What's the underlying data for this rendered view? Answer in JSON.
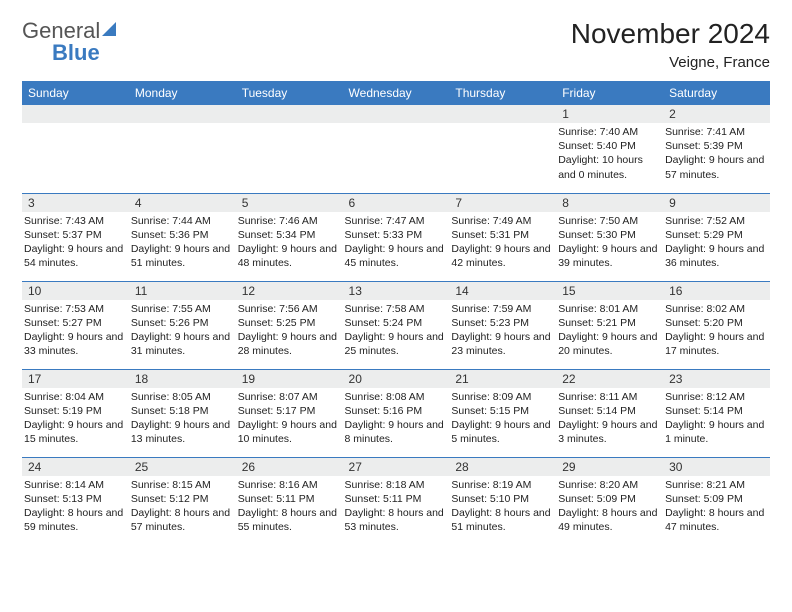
{
  "brand": {
    "word1": "General",
    "word2": "Blue"
  },
  "title": "November 2024",
  "location": "Veigne, France",
  "colors": {
    "header_bg": "#3a7ac0",
    "header_text": "#ffffff",
    "daynum_bg": "#eceded",
    "border": "#3a7ac0",
    "body_bg": "#ffffff",
    "text": "#222222"
  },
  "day_headers": [
    "Sunday",
    "Monday",
    "Tuesday",
    "Wednesday",
    "Thursday",
    "Friday",
    "Saturday"
  ],
  "weeks": [
    [
      {
        "empty": true
      },
      {
        "empty": true
      },
      {
        "empty": true
      },
      {
        "empty": true
      },
      {
        "empty": true
      },
      {
        "day": "1",
        "sunrise": "Sunrise: 7:40 AM",
        "sunset": "Sunset: 5:40 PM",
        "daylight": "Daylight: 10 hours and 0 minutes."
      },
      {
        "day": "2",
        "sunrise": "Sunrise: 7:41 AM",
        "sunset": "Sunset: 5:39 PM",
        "daylight": "Daylight: 9 hours and 57 minutes."
      }
    ],
    [
      {
        "day": "3",
        "sunrise": "Sunrise: 7:43 AM",
        "sunset": "Sunset: 5:37 PM",
        "daylight": "Daylight: 9 hours and 54 minutes."
      },
      {
        "day": "4",
        "sunrise": "Sunrise: 7:44 AM",
        "sunset": "Sunset: 5:36 PM",
        "daylight": "Daylight: 9 hours and 51 minutes."
      },
      {
        "day": "5",
        "sunrise": "Sunrise: 7:46 AM",
        "sunset": "Sunset: 5:34 PM",
        "daylight": "Daylight: 9 hours and 48 minutes."
      },
      {
        "day": "6",
        "sunrise": "Sunrise: 7:47 AM",
        "sunset": "Sunset: 5:33 PM",
        "daylight": "Daylight: 9 hours and 45 minutes."
      },
      {
        "day": "7",
        "sunrise": "Sunrise: 7:49 AM",
        "sunset": "Sunset: 5:31 PM",
        "daylight": "Daylight: 9 hours and 42 minutes."
      },
      {
        "day": "8",
        "sunrise": "Sunrise: 7:50 AM",
        "sunset": "Sunset: 5:30 PM",
        "daylight": "Daylight: 9 hours and 39 minutes."
      },
      {
        "day": "9",
        "sunrise": "Sunrise: 7:52 AM",
        "sunset": "Sunset: 5:29 PM",
        "daylight": "Daylight: 9 hours and 36 minutes."
      }
    ],
    [
      {
        "day": "10",
        "sunrise": "Sunrise: 7:53 AM",
        "sunset": "Sunset: 5:27 PM",
        "daylight": "Daylight: 9 hours and 33 minutes."
      },
      {
        "day": "11",
        "sunrise": "Sunrise: 7:55 AM",
        "sunset": "Sunset: 5:26 PM",
        "daylight": "Daylight: 9 hours and 31 minutes."
      },
      {
        "day": "12",
        "sunrise": "Sunrise: 7:56 AM",
        "sunset": "Sunset: 5:25 PM",
        "daylight": "Daylight: 9 hours and 28 minutes."
      },
      {
        "day": "13",
        "sunrise": "Sunrise: 7:58 AM",
        "sunset": "Sunset: 5:24 PM",
        "daylight": "Daylight: 9 hours and 25 minutes."
      },
      {
        "day": "14",
        "sunrise": "Sunrise: 7:59 AM",
        "sunset": "Sunset: 5:23 PM",
        "daylight": "Daylight: 9 hours and 23 minutes."
      },
      {
        "day": "15",
        "sunrise": "Sunrise: 8:01 AM",
        "sunset": "Sunset: 5:21 PM",
        "daylight": "Daylight: 9 hours and 20 minutes."
      },
      {
        "day": "16",
        "sunrise": "Sunrise: 8:02 AM",
        "sunset": "Sunset: 5:20 PM",
        "daylight": "Daylight: 9 hours and 17 minutes."
      }
    ],
    [
      {
        "day": "17",
        "sunrise": "Sunrise: 8:04 AM",
        "sunset": "Sunset: 5:19 PM",
        "daylight": "Daylight: 9 hours and 15 minutes."
      },
      {
        "day": "18",
        "sunrise": "Sunrise: 8:05 AM",
        "sunset": "Sunset: 5:18 PM",
        "daylight": "Daylight: 9 hours and 13 minutes."
      },
      {
        "day": "19",
        "sunrise": "Sunrise: 8:07 AM",
        "sunset": "Sunset: 5:17 PM",
        "daylight": "Daylight: 9 hours and 10 minutes."
      },
      {
        "day": "20",
        "sunrise": "Sunrise: 8:08 AM",
        "sunset": "Sunset: 5:16 PM",
        "daylight": "Daylight: 9 hours and 8 minutes."
      },
      {
        "day": "21",
        "sunrise": "Sunrise: 8:09 AM",
        "sunset": "Sunset: 5:15 PM",
        "daylight": "Daylight: 9 hours and 5 minutes."
      },
      {
        "day": "22",
        "sunrise": "Sunrise: 8:11 AM",
        "sunset": "Sunset: 5:14 PM",
        "daylight": "Daylight: 9 hours and 3 minutes."
      },
      {
        "day": "23",
        "sunrise": "Sunrise: 8:12 AM",
        "sunset": "Sunset: 5:14 PM",
        "daylight": "Daylight: 9 hours and 1 minute."
      }
    ],
    [
      {
        "day": "24",
        "sunrise": "Sunrise: 8:14 AM",
        "sunset": "Sunset: 5:13 PM",
        "daylight": "Daylight: 8 hours and 59 minutes."
      },
      {
        "day": "25",
        "sunrise": "Sunrise: 8:15 AM",
        "sunset": "Sunset: 5:12 PM",
        "daylight": "Daylight: 8 hours and 57 minutes."
      },
      {
        "day": "26",
        "sunrise": "Sunrise: 8:16 AM",
        "sunset": "Sunset: 5:11 PM",
        "daylight": "Daylight: 8 hours and 55 minutes."
      },
      {
        "day": "27",
        "sunrise": "Sunrise: 8:18 AM",
        "sunset": "Sunset: 5:11 PM",
        "daylight": "Daylight: 8 hours and 53 minutes."
      },
      {
        "day": "28",
        "sunrise": "Sunrise: 8:19 AM",
        "sunset": "Sunset: 5:10 PM",
        "daylight": "Daylight: 8 hours and 51 minutes."
      },
      {
        "day": "29",
        "sunrise": "Sunrise: 8:20 AM",
        "sunset": "Sunset: 5:09 PM",
        "daylight": "Daylight: 8 hours and 49 minutes."
      },
      {
        "day": "30",
        "sunrise": "Sunrise: 8:21 AM",
        "sunset": "Sunset: 5:09 PM",
        "daylight": "Daylight: 8 hours and 47 minutes."
      }
    ]
  ]
}
